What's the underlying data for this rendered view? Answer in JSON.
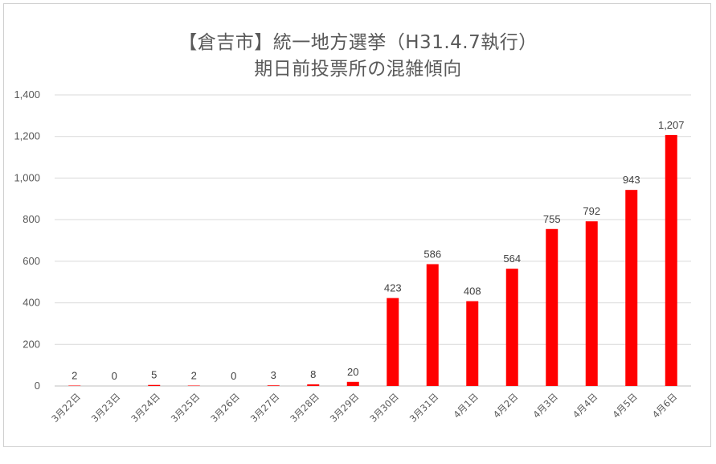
{
  "chart_data": {
    "type": "bar",
    "title": "【倉吉市】統一地方選挙（H31.4.7執行）",
    "subtitle": "期日前投票所の混雑傾向",
    "categories": [
      "3月22日",
      "3月23日",
      "3月24日",
      "3月25日",
      "3月26日",
      "3月27日",
      "3月28日",
      "3月29日",
      "3月30日",
      "3月31日",
      "4月1日",
      "4月2日",
      "4月3日",
      "4月4日",
      "4月5日",
      "4月6日"
    ],
    "values": [
      2,
      0,
      5,
      2,
      0,
      3,
      8,
      20,
      423,
      586,
      408,
      564,
      755,
      792,
      943,
      1207
    ],
    "data_labels": [
      "2",
      "0",
      "5",
      "2",
      "0",
      "3",
      "8",
      "20",
      "423",
      "586",
      "408",
      "564",
      "755",
      "792",
      "943",
      "1,207"
    ],
    "ylim": [
      0,
      1400
    ],
    "yticks": [
      0,
      200,
      400,
      600,
      800,
      1000,
      1200,
      1400
    ],
    "ytick_labels": [
      "0",
      "200",
      "400",
      "600",
      "800",
      "1,000",
      "1,200",
      "1,400"
    ],
    "xlabel": "",
    "ylabel": "",
    "grid": true,
    "legend": "none",
    "bar_color": "#ff0000"
  }
}
